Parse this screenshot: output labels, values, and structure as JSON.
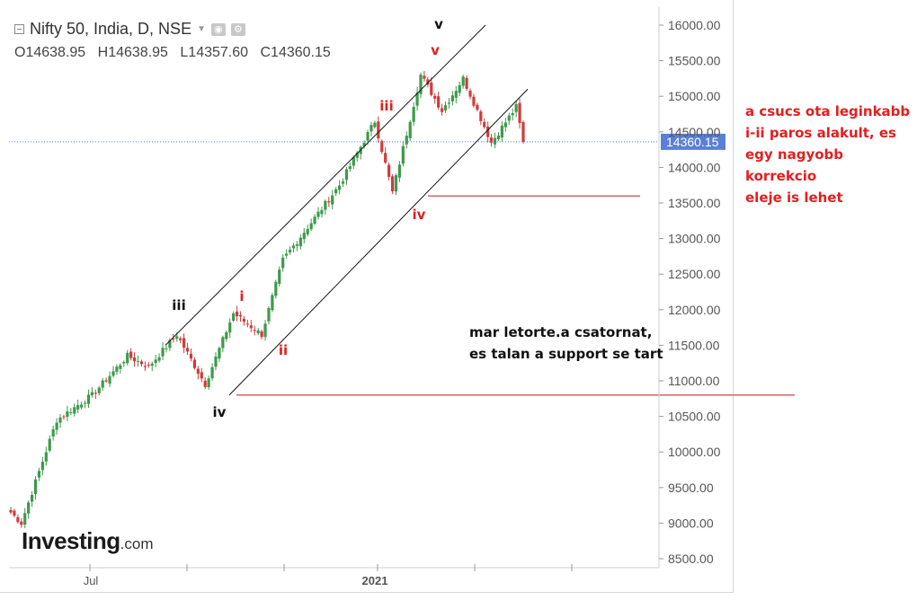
{
  "header": {
    "symbol_title": "Nifty 50, India, D, NSE",
    "ohlc": {
      "open": "O14638.95",
      "high": "H14638.95",
      "low": "L14357.60",
      "close": "C14360.15"
    }
  },
  "chart_data": {
    "type": "candlestick",
    "title": "Nifty 50, India, D, NSE",
    "y_axis": {
      "ticks": [
        16000,
        15500,
        15000,
        14500,
        14000,
        13500,
        13000,
        12500,
        12000,
        11500,
        11000,
        10500,
        10000,
        9500,
        9000,
        8500
      ],
      "tick_labels": [
        "16000.00",
        "15500.00",
        "15000.00",
        "14500.00",
        "14000.00",
        "13500.00",
        "13000.00",
        "12500.00",
        "12000.00",
        "11500.00",
        "11000.00",
        "10500.00",
        "10000.00",
        "9500.00",
        "9000.00",
        "8500.00"
      ],
      "range": [
        8400,
        16250
      ]
    },
    "x_axis": {
      "labels": [
        "Jul",
        "2021"
      ],
      "ticks": 6
    },
    "last_price": {
      "value": 14360.15,
      "label": "14360.15"
    },
    "colors": {
      "up": "#3d9a4a",
      "down": "#cf3c3c",
      "grid_line": "#5a7fd6",
      "annotation_red": "#e02020",
      "support": "#b21e1e"
    },
    "series_segments": [
      {
        "start": 9200,
        "end": 9000,
        "n": 4
      },
      {
        "start": 9000,
        "end": 10450,
        "n": 10
      },
      {
        "start": 10450,
        "end": 10800,
        "n": 10
      },
      {
        "start": 10800,
        "end": 11350,
        "n": 10
      },
      {
        "start": 11350,
        "end": 11200,
        "n": 6
      },
      {
        "start": 11200,
        "end": 11650,
        "n": 8
      },
      {
        "start": 11650,
        "end": 11300,
        "n": 4
      },
      {
        "start": 11300,
        "end": 10950,
        "n": 4
      },
      {
        "start": 10950,
        "end": 11950,
        "n": 8
      },
      {
        "start": 11950,
        "end": 11650,
        "n": 8
      },
      {
        "start": 11650,
        "end": 12700,
        "n": 6
      },
      {
        "start": 12700,
        "end": 13750,
        "n": 16
      },
      {
        "start": 13750,
        "end": 14650,
        "n": 10
      },
      {
        "start": 14650,
        "end": 13650,
        "n": 5
      },
      {
        "start": 13650,
        "end": 15300,
        "n": 8
      },
      {
        "start": 15300,
        "end": 14800,
        "n": 6
      },
      {
        "start": 14800,
        "end": 15250,
        "n": 6
      },
      {
        "start": 15250,
        "end": 14350,
        "n": 8
      },
      {
        "start": 14350,
        "end": 14850,
        "n": 7
      },
      {
        "start": 14850,
        "end": 14360,
        "n": 2
      }
    ],
    "channels": [
      {
        "name": "upper-channel",
        "from": [
          184,
          11500
        ],
        "to": [
          540,
          16000
        ]
      },
      {
        "name": "lower-channel",
        "from": [
          255,
          10800
        ],
        "to": [
          587,
          15100
        ]
      }
    ],
    "support_lines": [
      {
        "name": "support-10800",
        "level": 10800
      },
      {
        "name": "support-13600",
        "level": 13600
      }
    ],
    "wave_labels": [
      {
        "text": "iii",
        "color": "#111111"
      },
      {
        "text": "iv",
        "color": "#111111"
      },
      {
        "text": "v",
        "color": "#111111"
      },
      {
        "text": "i",
        "color": "#e02020"
      },
      {
        "text": "ii",
        "color": "#e02020"
      },
      {
        "text": "iii",
        "color": "#e02020"
      },
      {
        "text": "iv",
        "color": "#e02020"
      },
      {
        "text": "v",
        "color": "#e02020"
      }
    ]
  },
  "annotations": {
    "red_note": "a csucs ota leginkabb\ni-ii paros alakult, es\negy nagyobb korrekcio\neleje is lehet",
    "black_note": "mar letorte.a csatornat,\nes talan a support se tart"
  },
  "branding": {
    "logo_main": "Investing",
    "logo_suffix": ".com"
  }
}
